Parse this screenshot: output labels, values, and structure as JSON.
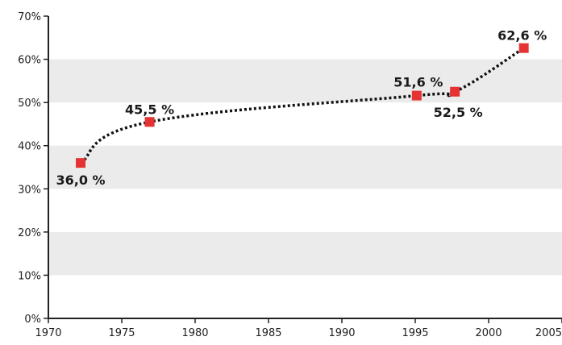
{
  "chart_data": {
    "type": "line",
    "title": "",
    "xlabel": "",
    "ylabel": "",
    "xlim": [
      1970,
      2005
    ],
    "ylim": [
      0,
      70
    ],
    "x_ticks": [
      "1970",
      "1975",
      "1980",
      "1985",
      "1990",
      "1995",
      "2000",
      "2005"
    ],
    "y_ticks": [
      "0%",
      "10%",
      "20%",
      "30%",
      "40%",
      "50%",
      "60%",
      "70%"
    ],
    "grid": "alternating horizontal bands",
    "band_color": "#ebebeb",
    "line_color": "#111111",
    "line_style": "dotted",
    "marker_color": "#e53333",
    "marker_shape": "square",
    "series": [
      {
        "points": [
          {
            "x": 1972.2,
            "y": 36.0,
            "label": "36,0 %",
            "label_pos": "below"
          },
          {
            "x": 1976.9,
            "y": 45.5,
            "label": "45,5 %",
            "label_pos": "above"
          },
          {
            "x": 1995.1,
            "y": 51.6,
            "label": "51,6 %",
            "label_pos": "above"
          },
          {
            "x": 1997.7,
            "y": 52.5,
            "label": "52,5 %",
            "label_pos": "below"
          },
          {
            "x": 2002.4,
            "y": 62.6,
            "label": "62,6 %",
            "label_pos": "above"
          }
        ]
      }
    ]
  }
}
